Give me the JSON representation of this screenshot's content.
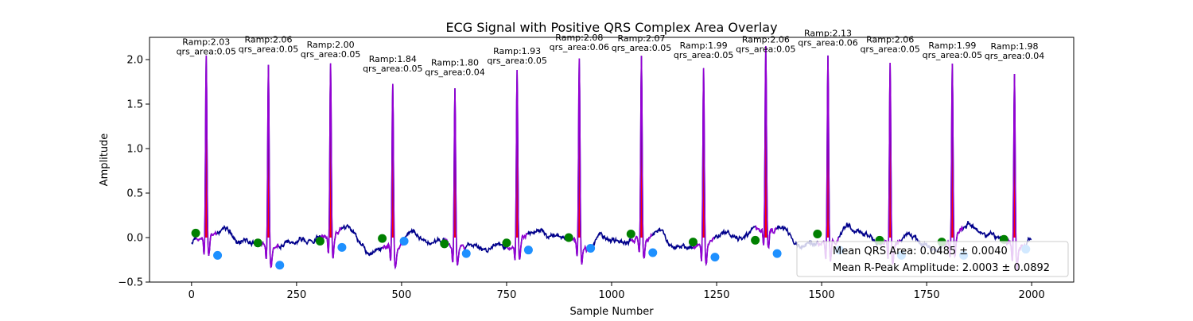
{
  "chart_data": {
    "type": "line",
    "title": "ECG Signal with Positive QRS Complex Area Overlay",
    "xlabel": "Sample Number",
    "ylabel": "Amplitude",
    "xlim": [
      -100,
      2100
    ],
    "ylim": [
      -0.5,
      2.25
    ],
    "xticks": [
      0,
      250,
      500,
      750,
      1000,
      1250,
      1500,
      1750,
      2000
    ],
    "yticks": [
      -0.5,
      0.0,
      0.5,
      1.0,
      1.5,
      2.0
    ],
    "xtick_labels": [
      "0",
      "250",
      "500",
      "750",
      "1000",
      "1250",
      "1500",
      "1750",
      "2000"
    ],
    "ytick_labels": [
      "−0.5",
      "0.0",
      "0.5",
      "1.0",
      "1.5",
      "2.0"
    ],
    "beats": [
      {
        "r_x": 35,
        "r_amp": 2.03,
        "qrs_area": 0.05,
        "ramp_label": "Ramp:2.03",
        "qrs_label": "qrs_area:0.05",
        "q_x": 10,
        "q_y": 0.05,
        "s_x": 62,
        "s_y": -0.2
      },
      {
        "r_x": 183,
        "r_amp": 2.06,
        "qrs_area": 0.05,
        "ramp_label": "Ramp:2.06",
        "qrs_label": "qrs_area:0.05",
        "q_x": 158,
        "q_y": -0.06,
        "s_x": 210,
        "s_y": -0.31
      },
      {
        "r_x": 331,
        "r_amp": 2.0,
        "qrs_area": 0.05,
        "ramp_label": "Ramp:2.00",
        "qrs_label": "qrs_area:0.05",
        "q_x": 306,
        "q_y": -0.04,
        "s_x": 358,
        "s_y": -0.11
      },
      {
        "r_x": 479,
        "r_amp": 1.84,
        "qrs_area": 0.05,
        "ramp_label": "Ramp:1.84",
        "qrs_label": "qrs_area:0.05",
        "q_x": 454,
        "q_y": -0.01,
        "s_x": 506,
        "s_y": -0.04
      },
      {
        "r_x": 627,
        "r_amp": 1.8,
        "qrs_area": 0.04,
        "ramp_label": "Ramp:1.80",
        "qrs_label": "qrs_area:0.04",
        "q_x": 602,
        "q_y": -0.07,
        "s_x": 654,
        "s_y": -0.18
      },
      {
        "r_x": 775,
        "r_amp": 1.93,
        "qrs_area": 0.05,
        "ramp_label": "Ramp:1.93",
        "qrs_label": "qrs_area:0.05",
        "q_x": 750,
        "q_y": -0.06,
        "s_x": 802,
        "s_y": -0.14
      },
      {
        "r_x": 923,
        "r_amp": 2.08,
        "qrs_area": 0.06,
        "ramp_label": "Ramp:2.08",
        "qrs_label": "qrs_area:0.06",
        "q_x": 898,
        "q_y": 0.0,
        "s_x": 950,
        "s_y": -0.12
      },
      {
        "r_x": 1071,
        "r_amp": 2.07,
        "qrs_area": 0.05,
        "ramp_label": "Ramp:2.07",
        "qrs_label": "qrs_area:0.05",
        "q_x": 1046,
        "q_y": 0.04,
        "s_x": 1098,
        "s_y": -0.17
      },
      {
        "r_x": 1219,
        "r_amp": 1.99,
        "qrs_area": 0.05,
        "ramp_label": "Ramp:1.99",
        "qrs_label": "qrs_area:0.05",
        "q_x": 1194,
        "q_y": -0.05,
        "s_x": 1246,
        "s_y": -0.22
      },
      {
        "r_x": 1367,
        "r_amp": 2.06,
        "qrs_area": 0.05,
        "ramp_label": "Ramp:2.06",
        "qrs_label": "qrs_area:0.05",
        "q_x": 1342,
        "q_y": -0.03,
        "s_x": 1394,
        "s_y": -0.18
      },
      {
        "r_x": 1515,
        "r_amp": 2.13,
        "qrs_area": 0.06,
        "ramp_label": "Ramp:2.13",
        "qrs_label": "qrs_area:0.06",
        "q_x": 1490,
        "q_y": 0.04,
        "s_x": 1542,
        "s_y": -0.14
      },
      {
        "r_x": 1663,
        "r_amp": 2.06,
        "qrs_area": 0.05,
        "ramp_label": "Ramp:2.06",
        "qrs_label": "qrs_area:0.05",
        "q_x": 1638,
        "q_y": -0.03,
        "s_x": 1690,
        "s_y": -0.2
      },
      {
        "r_x": 1811,
        "r_amp": 1.99,
        "qrs_area": 0.05,
        "ramp_label": "Ramp:1.99",
        "qrs_label": "qrs_area:0.05",
        "q_x": 1786,
        "q_y": -0.05,
        "s_x": 1838,
        "s_y": -0.2
      },
      {
        "r_x": 1959,
        "r_amp": 1.98,
        "qrs_area": 0.04,
        "ramp_label": "Ramp:1.98",
        "qrs_label": "qrs_area:0.04",
        "q_x": 1934,
        "q_y": -0.02,
        "s_x": 1986,
        "s_y": -0.13
      }
    ],
    "legend": {
      "placement": "lower right",
      "entries": [
        "Mean QRS Area: 0.0485 ± 0.0040",
        "Mean R-Peak Amplitude: 2.0003 ± 0.0892"
      ]
    },
    "grid": false,
    "colors": {
      "signal": "#00008b",
      "qrs_segment": "#9400d3",
      "qrs_area_fill": "#ff0000",
      "q_marker": "#008000",
      "s_marker": "#1e90ff"
    }
  }
}
